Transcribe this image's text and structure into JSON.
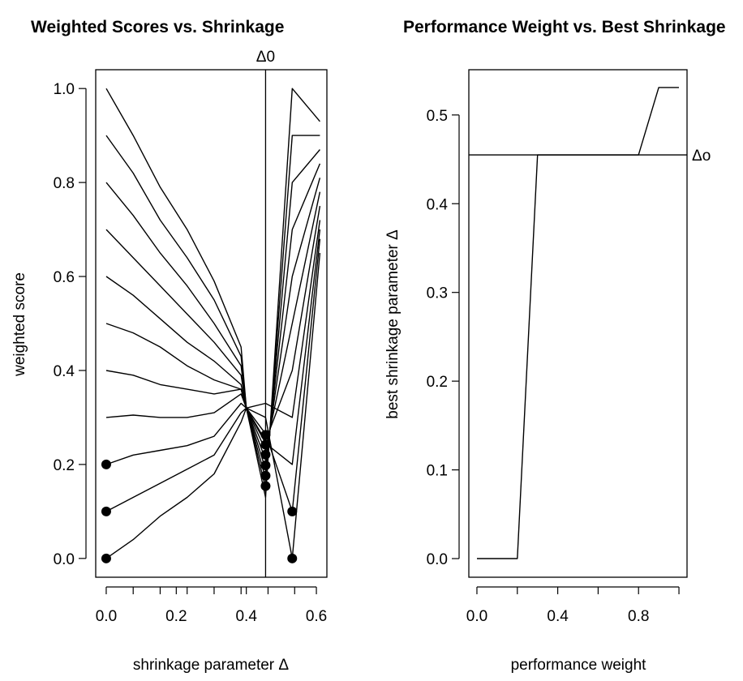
{
  "chart_data": [
    {
      "type": "line",
      "title": "Weighted Scores vs. Shrinkage",
      "xlabel": "shrinkage parameter Δ",
      "ylabel": "weighted score",
      "xlim": [
        -0.03,
        0.63
      ],
      "ylim": [
        -0.04,
        1.04
      ],
      "xticks": [
        0.0,
        0.2,
        0.4,
        0.6
      ],
      "xtick_labels": [
        "0.0",
        "0.2",
        "0.4",
        "0.6"
      ],
      "xminor_ticks": [
        0.077,
        0.154,
        0.231,
        0.308,
        0.385,
        0.462,
        0.538
      ],
      "yticks": [
        0.0,
        0.2,
        0.4,
        0.6,
        0.8,
        1.0
      ],
      "ytick_labels": [
        "0.0",
        "0.2",
        "0.4",
        "0.6",
        "0.8",
        "1.0"
      ],
      "vline": {
        "x": 0.455,
        "label": "Δ0"
      },
      "x": [
        0.0,
        0.077,
        0.154,
        0.231,
        0.308,
        0.385,
        0.4,
        0.455,
        0.531,
        0.61
      ],
      "series": [
        {
          "values": [
            1.0,
            0.9,
            0.79,
            0.7,
            0.59,
            0.45,
            0.32,
            0.13,
            1.0,
            0.93
          ]
        },
        {
          "values": [
            0.9,
            0.82,
            0.72,
            0.64,
            0.55,
            0.43,
            0.32,
            0.15,
            0.9,
            0.9
          ]
        },
        {
          "values": [
            0.8,
            0.73,
            0.65,
            0.58,
            0.5,
            0.41,
            0.32,
            0.17,
            0.8,
            0.87
          ]
        },
        {
          "values": [
            0.7,
            0.64,
            0.58,
            0.52,
            0.46,
            0.39,
            0.32,
            0.19,
            0.7,
            0.84
          ]
        },
        {
          "values": [
            0.6,
            0.56,
            0.51,
            0.46,
            0.42,
            0.37,
            0.32,
            0.21,
            0.6,
            0.81
          ]
        },
        {
          "values": [
            0.5,
            0.48,
            0.45,
            0.41,
            0.38,
            0.36,
            0.32,
            0.23,
            0.5,
            0.78
          ]
        },
        {
          "values": [
            0.4,
            0.39,
            0.37,
            0.36,
            0.35,
            0.36,
            0.32,
            0.25,
            0.4,
            0.75
          ]
        },
        {
          "values": [
            0.3,
            0.305,
            0.3,
            0.3,
            0.31,
            0.35,
            0.32,
            0.33,
            0.3,
            0.72
          ]
        },
        {
          "values": [
            0.2,
            0.22,
            0.23,
            0.24,
            0.26,
            0.33,
            0.32,
            0.245,
            0.2,
            0.7
          ]
        },
        {
          "values": [
            0.1,
            0.13,
            0.16,
            0.19,
            0.22,
            0.31,
            0.32,
            0.265,
            0.1,
            0.68
          ]
        },
        {
          "values": [
            0.0,
            0.04,
            0.09,
            0.13,
            0.18,
            0.29,
            0.32,
            0.3,
            0.0,
            0.65
          ]
        }
      ],
      "points": [
        {
          "x": 0.0,
          "y": 0.2
        },
        {
          "x": 0.0,
          "y": 0.1
        },
        {
          "x": 0.0,
          "y": 0.0
        },
        {
          "x": 0.455,
          "y": 0.263
        },
        {
          "x": 0.455,
          "y": 0.242
        },
        {
          "x": 0.455,
          "y": 0.221
        },
        {
          "x": 0.455,
          "y": 0.198
        },
        {
          "x": 0.455,
          "y": 0.176
        },
        {
          "x": 0.455,
          "y": 0.154
        },
        {
          "x": 0.531,
          "y": 0.1
        },
        {
          "x": 0.531,
          "y": 0.0
        }
      ]
    },
    {
      "type": "line",
      "title": "Performance Weight vs. Best Shrinkage",
      "xlabel": "performance weight",
      "ylabel": "best shrinkage parameter Δ",
      "xlim": [
        -0.04,
        1.04
      ],
      "ylim": [
        -0.021,
        0.551
      ],
      "xticks": [
        0.0,
        0.4,
        0.8
      ],
      "xtick_labels": [
        "0.0",
        "0.4",
        "0.8"
      ],
      "xminor_ticks": [
        0.2,
        0.6,
        1.0
      ],
      "yticks": [
        0.0,
        0.1,
        0.2,
        0.3,
        0.4,
        0.5
      ],
      "ytick_labels": [
        "0.0",
        "0.1",
        "0.2",
        "0.3",
        "0.4",
        "0.5"
      ],
      "hline": {
        "y": 0.455,
        "label": "Δo"
      },
      "x": [
        0.0,
        0.1,
        0.2,
        0.3,
        0.4,
        0.5,
        0.6,
        0.7,
        0.8,
        0.9,
        1.0
      ],
      "values": [
        0.0,
        0.0,
        0.0,
        0.455,
        0.455,
        0.455,
        0.455,
        0.455,
        0.455,
        0.531,
        0.531
      ]
    }
  ]
}
